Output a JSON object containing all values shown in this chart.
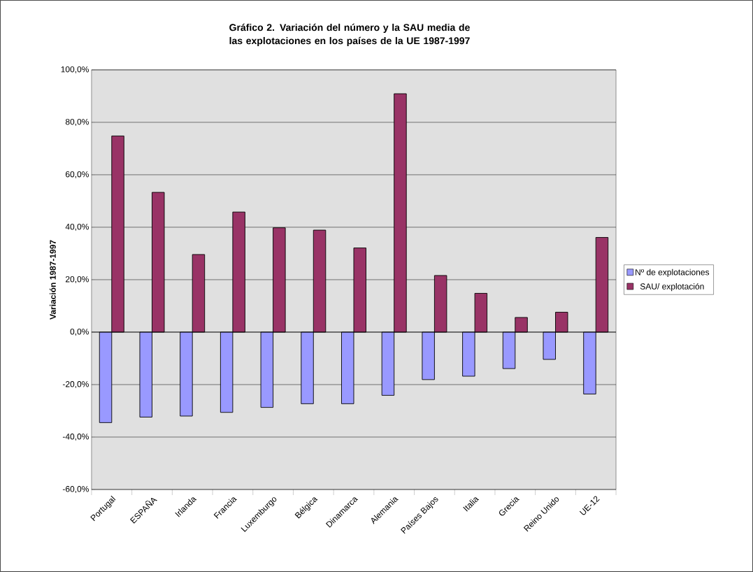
{
  "chart_data": {
    "type": "bar",
    "title": "Gráfico 2. Variación del número y la SAU media de las explotaciones en los países de la UE  1987-1997",
    "ylabel": "Variación 1987-1997",
    "categories": [
      "Portugal",
      "ESPAÑA",
      "Irlanda",
      "Francia",
      "Luxemburgo",
      "Bélgica",
      "Dinamarca",
      "Alemania",
      "Países Bajos",
      "Italia",
      "Grecia",
      "Reino Unido",
      "UE-12"
    ],
    "series": [
      {
        "name": "Nº de explotaciones",
        "color": "#9999ff",
        "values": [
          -34.5,
          -32.4,
          -32.0,
          -30.6,
          -28.7,
          -27.3,
          -27.3,
          -24.1,
          -18.1,
          -16.8,
          -13.9,
          -10.4,
          -23.6
        ]
      },
      {
        "name": "SAU/ explotación",
        "color": "#993366",
        "values": [
          74.8,
          53.3,
          29.6,
          45.8,
          39.8,
          38.9,
          32.1,
          90.9,
          21.6,
          14.8,
          5.6,
          7.6,
          36.1
        ]
      }
    ],
    "ylim": [
      -60,
      100
    ],
    "yticks": [
      {
        "value": -60,
        "label": "-60,0%"
      },
      {
        "value": -40,
        "label": "-40,0%"
      },
      {
        "value": -20,
        "label": "-20,0%"
      },
      {
        "value": 0,
        "label": "0,0%"
      },
      {
        "value": 20,
        "label": "20,0%"
      },
      {
        "value": 40,
        "label": "40,0%"
      },
      {
        "value": 60,
        "label": "60,0%"
      },
      {
        "value": 80,
        "label": "80,0%"
      },
      {
        "value": 100,
        "label": "100,0%"
      }
    ],
    "grid": "y",
    "legend": "right"
  }
}
